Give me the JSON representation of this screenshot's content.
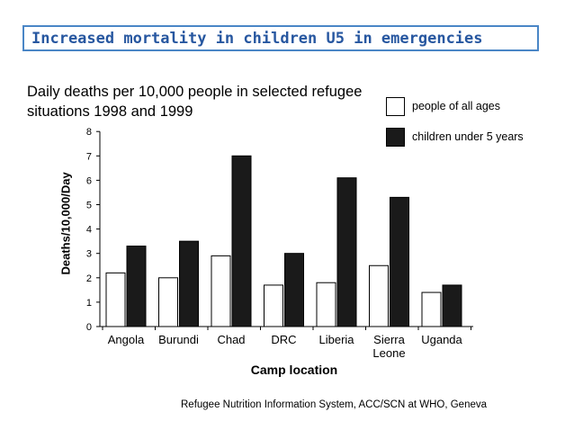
{
  "slide": {
    "title": "Increased mortality in children U5 in emergencies",
    "source": "Refugee Nutrition Information System, ACC/SCN at WHO, Geneva"
  },
  "colors": {
    "title_border": "#4a86c6",
    "title_text": "#2757a0",
    "series_u5": "#1a1a1a",
    "series_all": "#ffffff"
  },
  "chart_data": {
    "type": "bar",
    "title_lines": [
      "Daily deaths per 10,000 people in selected refugee",
      "situations 1998 and 1999"
    ],
    "xlabel": "Camp location",
    "ylabel": "Deaths/10,000/Day",
    "ylim": [
      0,
      8
    ],
    "yticks": [
      "0",
      "1",
      "2",
      "3",
      "4",
      "5",
      "6",
      "7",
      "8"
    ],
    "categories": [
      [
        "Angola"
      ],
      [
        "Burundi"
      ],
      [
        "Chad"
      ],
      [
        "DRC"
      ],
      [
        "Liberia"
      ],
      [
        "Sierra",
        "Leone"
      ],
      [
        "Uganda"
      ]
    ],
    "series": [
      {
        "name": "people of all ages",
        "values": [
          2.2,
          2.0,
          2.9,
          1.7,
          1.8,
          2.5,
          1.4
        ]
      },
      {
        "name": "children under 5 years",
        "values": [
          3.3,
          3.5,
          7.0,
          3.0,
          6.1,
          5.3,
          1.7
        ]
      }
    ],
    "legend_position": "top-right",
    "grid": false
  }
}
